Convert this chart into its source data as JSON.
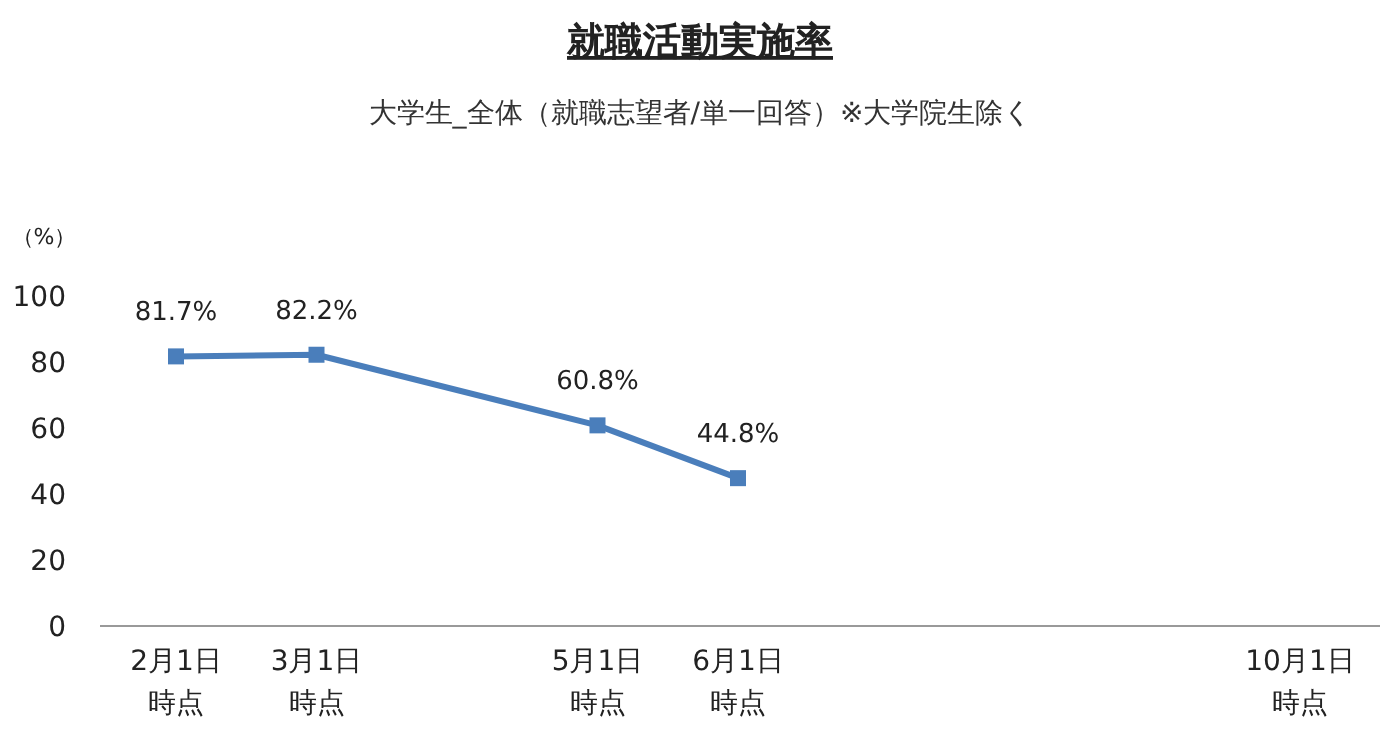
{
  "chart_data": {
    "type": "line",
    "title": "就職活動実施率",
    "subtitle": "大学生_全体（就職志望者/単一回答）※大学院生除く",
    "ylabel": "（%）",
    "categories": [
      "2月1日時点",
      "3月1日時点",
      null,
      "5月1日時点",
      "6月1日時点",
      null,
      null,
      null,
      "10月1日時点"
    ],
    "series": [
      {
        "color": "#4a7ebb",
        "values": [
          81.7,
          82.2,
          null,
          60.8,
          44.8,
          null,
          null,
          null,
          null
        ],
        "value_labels": [
          "81.7%",
          "82.2%",
          null,
          "60.8%",
          "44.8%",
          null,
          null,
          null,
          null
        ]
      }
    ],
    "ylim": [
      0,
      100
    ],
    "yticks": [
      0,
      20,
      40,
      60,
      80,
      100
    ],
    "marker": "square",
    "line_style": "solid"
  }
}
